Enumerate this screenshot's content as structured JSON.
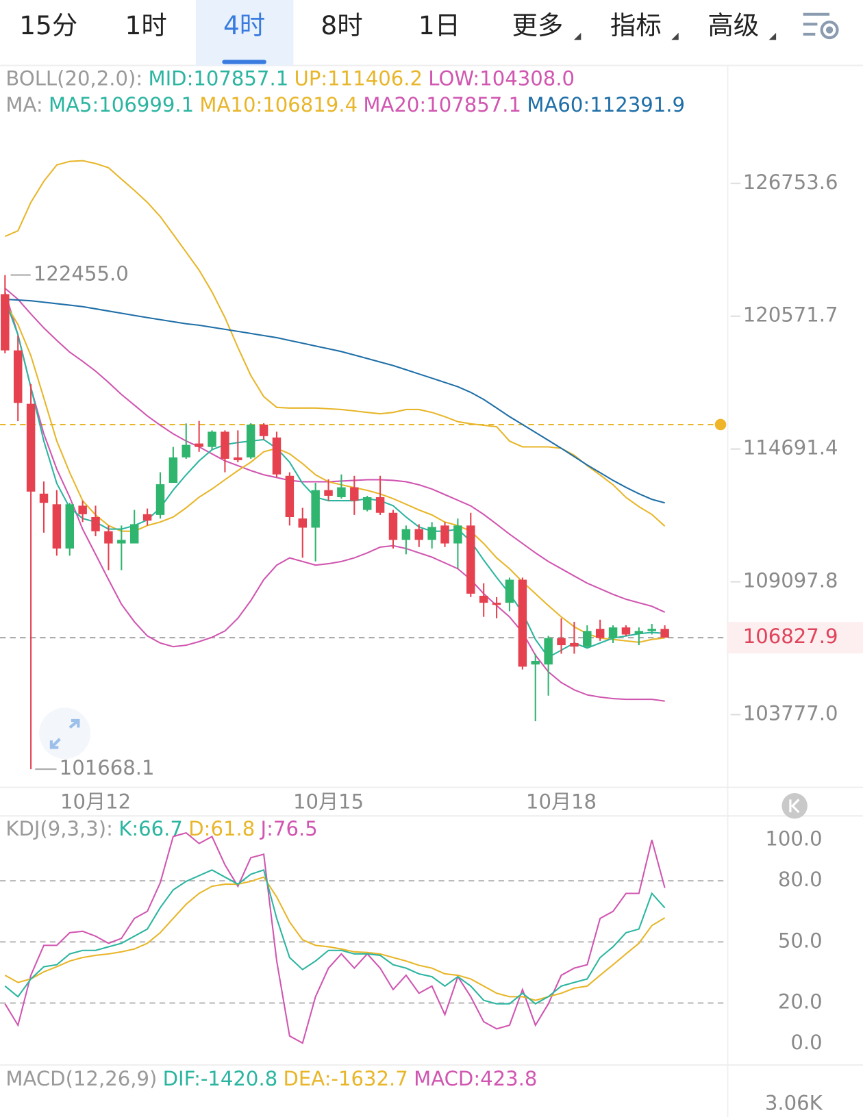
{
  "tabs": [
    "15分",
    "1时",
    "4时",
    "8时",
    "1日",
    "更多",
    "指标",
    "高级"
  ],
  "active_tab": 2,
  "chart_data": [
    {
      "type": "candlestick",
      "log": true,
      "ylim": [
        101000,
        132400
      ],
      "yticks": [
        126753.6,
        120571.7,
        114691.4,
        109097.8,
        {
          "value": 103777,
          "label": "103777.0"
        }
      ],
      "categories": [
        null,
        null,
        null,
        null,
        null,
        null,
        null,
        "10月12",
        null,
        null,
        null,
        null,
        null,
        null,
        null,
        null,
        null,
        null,
        null,
        null,
        null,
        null,
        null,
        null,
        null,
        "10月15",
        null,
        null,
        null,
        null,
        null,
        null,
        null,
        null,
        null,
        null,
        null,
        null,
        null,
        null,
        null,
        null,
        null,
        "10月18",
        null,
        null,
        null,
        null,
        null,
        null,
        null,
        null
      ],
      "up_color": "#2fb56e",
      "down_color": "#e5414f",
      "open": [
        121577,
        119030,
        116660,
        112780,
        112330,
        110475,
        112270,
        111790,
        111195,
        110685,
        110685,
        111910,
        111880,
        113240,
        114330,
        114930,
        114780,
        115440,
        114330,
        114330,
        115750,
        115190,
        113540,
        111730,
        111345,
        112930,
        112630,
        113050,
        112090,
        112630,
        111970,
        110835,
        111285,
        110835,
        111435,
        110685,
        111435,
        108526,
        108240,
        108240,
        109184,
        105754,
        105754,
        106812,
        106612,
        106469,
        107183,
        106812,
        107240,
        106983,
        107098,
        107183
      ],
      "high": [
        122455,
        119700,
        117530,
        113300,
        112930,
        112390,
        112480,
        112270,
        111435,
        111435,
        112090,
        112150,
        113690,
        114780,
        115800,
        115910,
        115500,
        115500,
        115500,
        115810,
        115810,
        115440,
        113690,
        112180,
        113240,
        113390,
        113600,
        113540,
        112690,
        113540,
        112090,
        111435,
        111490,
        111580,
        111580,
        111730,
        111970,
        109040,
        108470,
        109270,
        109270,
        106183,
        106898,
        107610,
        107468,
        107325,
        107554,
        107325,
        107325,
        107240,
        107382,
        107325
      ],
      "low": [
        118900,
        115900,
        101668.1,
        111135,
        110176,
        110176,
        111580,
        110985,
        109580,
        109580,
        110685,
        111435,
        111730,
        113240,
        114270,
        114570,
        114660,
        113690,
        114120,
        114270,
        115090,
        113480,
        111435,
        110090,
        109940,
        112480,
        112570,
        111880,
        112030,
        111880,
        110475,
        110235,
        110535,
        110475,
        110535,
        109640,
        108470,
        107668,
        107610,
        107897,
        105554,
        103520,
        104520,
        106183,
        106183,
        106412,
        106697,
        106612,
        106898,
        106526,
        106955,
        106840
      ],
      "close": [
        119030,
        116700,
        112867,
        112390,
        110475,
        112330,
        111910,
        111195,
        110685,
        110835,
        111490,
        111640,
        113180,
        114330,
        114870,
        114780,
        115440,
        114270,
        114210,
        115750,
        115250,
        113600,
        111790,
        111345,
        112930,
        112690,
        113050,
        112480,
        112630,
        111970,
        110835,
        111285,
        110835,
        111375,
        110685,
        111435,
        108612,
        108240,
        108155,
        109184,
        105668,
        105897,
        106812,
        106526,
        106469,
        107098,
        106812,
        107240,
        106955,
        107098,
        107183,
        106827.9
      ],
      "overlays": [
        {
          "color": "#e8b62a",
          "values": [
            124249,
            124516,
            125852,
            126856,
            127638,
            127808,
            127842,
            127706,
            127502,
            126958,
            126420,
            125852,
            125184,
            124349,
            123514,
            122679,
            121677,
            120509,
            119159,
            117911,
            116973,
            116503,
            116472,
            116472,
            116472,
            116441,
            116410,
            116347,
            116284,
            116222,
            116284,
            116410,
            116410,
            116284,
            116096,
            115878,
            115784,
            115721,
            115659,
            115034,
            114785,
            114785,
            114785,
            114723,
            114422,
            113973,
            113576,
            113157,
            112619,
            112230,
            111901,
            111406.2
          ]
        },
        {
          "color": "#d056b0",
          "values": [
            121677,
            119727,
            117380,
            115348,
            113824,
            112629,
            111284,
            110234,
            109188,
            108183,
            107468,
            106898,
            106612,
            106469,
            106526,
            106669,
            106841,
            107098,
            107611,
            108326,
            109188,
            109786,
            110085,
            109935,
            109786,
            109846,
            109935,
            110085,
            110294,
            110533,
            110593,
            110474,
            110294,
            110115,
            109876,
            109636,
            109188,
            108612,
            108126,
            107668,
            107040,
            106122,
            105464,
            105035,
            104749,
            104549,
            104463,
            104406,
            104378,
            104378,
            104378,
            104308.0
          ]
        },
        {
          "color": "#d056b0",
          "values": [
            121844,
            121342,
            120674,
            120040,
            119480,
            118948,
            118541,
            118103,
            117602,
            117070,
            116600,
            116131,
            115724,
            115348,
            115035,
            114785,
            114482,
            114183,
            113974,
            113764,
            113585,
            113465,
            113345,
            113286,
            113286,
            113286,
            113315,
            113345,
            113375,
            113375,
            113345,
            113286,
            113157,
            112978,
            112739,
            112500,
            112260,
            111901,
            111490,
            111072,
            110683,
            110294,
            109935,
            109636,
            109337,
            109041,
            108812,
            108584,
            108383,
            108240,
            108097,
            107857.1
          ]
        },
        {
          "color": "#1e6ea7",
          "values": [
            121342,
            121309,
            121275,
            121208,
            121141,
            121074,
            121007,
            120907,
            120807,
            120707,
            120605,
            120509,
            120415,
            120321,
            120228,
            120165,
            120071,
            119978,
            119884,
            119790,
            119696,
            119602,
            119477,
            119352,
            119227,
            119104,
            118978,
            118823,
            118666,
            118510,
            118353,
            118165,
            117978,
            117790,
            117602,
            117414,
            117164,
            116851,
            116475,
            116100,
            115755,
            115411,
            115067,
            114723,
            114362,
            114003,
            113674,
            113345,
            113046,
            112777,
            112538,
            112391.9
          ]
        },
        {
          "color": "#e8b62a",
          "values": [
            121175,
            120196,
            118792,
            116913,
            115035,
            113674,
            112480,
            111880,
            111435,
            111195,
            111195,
            111435,
            111580,
            111790,
            112180,
            112629,
            112978,
            113375,
            113764,
            114123,
            114571,
            114723,
            114482,
            114063,
            113585,
            113286,
            113157,
            113038,
            112919,
            112769,
            112570,
            112330,
            112090,
            111880,
            111580,
            111435,
            111195,
            110683,
            110085,
            109636,
            109098,
            108612,
            108126,
            107668,
            107268,
            106984,
            106812,
            106755,
            106698,
            106641,
            106755,
            106819.4
          ]
        },
        {
          "color": "#2bb5a0",
          "values": [
            121342,
            119727,
            117383,
            115035,
            113216,
            112180,
            111730,
            111580,
            111285,
            111285,
            111435,
            111670,
            112180,
            112930,
            113585,
            114183,
            114661,
            114879,
            114973,
            115035,
            115097,
            114723,
            114123,
            113216,
            112629,
            112480,
            112480,
            112480,
            112570,
            112480,
            112270,
            111790,
            111375,
            111195,
            111195,
            111285,
            110774,
            109995,
            109277,
            108612,
            107840,
            106755,
            106040,
            106326,
            106612,
            106412,
            106612,
            106812,
            106898,
            106984,
            107041,
            106999.1
          ]
        }
      ],
      "legend": [
        [
          {
            "text": "BOLL(20,2.0):",
            "color": "#9a9a9a"
          },
          {
            "text": "MID:107857.1",
            "color": "#2bb5a0"
          },
          {
            "text": "UP:111406.2",
            "color": "#e8b62a"
          },
          {
            "text": "LOW:104308.0",
            "color": "#d056b0"
          }
        ],
        [
          {
            "text": "MA:",
            "color": "#9a9a9a"
          },
          {
            "text": "MA5:106999.1",
            "color": "#2bb5a0"
          },
          {
            "text": "MA10:106819.4",
            "color": "#e8b62a"
          },
          {
            "text": "MA20:107857.1",
            "color": "#d056b0"
          },
          {
            "text": "MA60:112391.9",
            "color": "#1e6ea7"
          }
        ]
      ],
      "last_price": 106827.9,
      "alert_price": 115750,
      "high_label": "122455.0",
      "low_label": "101668.1"
    },
    {
      "type": "line",
      "ylim": [
        -10.1,
        111.5
      ],
      "yticks": [
        {
          "value": 100,
          "label": "100.0"
        },
        {
          "value": 80,
          "label": "80.0"
        },
        {
          "value": 50,
          "label": "50.0"
        },
        {
          "value": 20,
          "label": "20.0"
        },
        {
          "value": 0,
          "label": "0.0"
        }
      ],
      "levels": [
        80,
        50,
        20
      ],
      "legend": [
        {
          "text": "KDJ(9,3,3):",
          "color": "#9a9a9a"
        },
        {
          "text": "K:66.7",
          "color": "#2bb5a0"
        },
        {
          "text": "D:61.8",
          "color": "#e8b62a"
        },
        {
          "text": "J:76.5",
          "color": "#d056b0"
        }
      ],
      "series": [
        {
          "color": "#d056b0",
          "values": [
            19.6,
            9.1,
            33.6,
            48.3,
            48.3,
            54.5,
            55.2,
            52.8,
            49.3,
            51.7,
            61.5,
            65.0,
            79.0,
            101.7,
            103.5,
            98.3,
            101.7,
            87.8,
            77.3,
            91.3,
            93.0,
            40.6,
            3.8,
            0.3,
            23.1,
            37.1,
            44.1,
            37.1,
            44.1,
            37.1,
            26.6,
            33.6,
            24.8,
            28.3,
            14.3,
            32.9,
            23.1,
            10.8,
            7.3,
            9.1,
            26.6,
            9.1,
            19.6,
            33.6,
            37.1,
            38.8,
            61.5,
            65.0,
            73.8,
            73.8,
            100.0,
            76.5
          ]
        },
        {
          "color": "#e8b62a",
          "values": [
            33.6,
            30.1,
            31.8,
            35.3,
            37.8,
            40.6,
            42.3,
            43.4,
            44.1,
            45.1,
            46.5,
            49.3,
            54.5,
            61.5,
            68.5,
            73.8,
            77.3,
            78.3,
            78.3,
            79.7,
            81.8,
            72.0,
            59.8,
            51.0,
            48.3,
            47.6,
            46.5,
            45.1,
            44.8,
            44.1,
            42.3,
            40.6,
            38.5,
            37.1,
            34.3,
            33.6,
            31.8,
            28.3,
            24.8,
            23.1,
            23.1,
            21.3,
            23.1,
            24.8,
            27.3,
            28.3,
            33.6,
            38.8,
            44.1,
            49.3,
            58.0,
            61.8
          ]
        },
        {
          "color": "#2bb5a0",
          "values": [
            28.3,
            23.1,
            31.8,
            37.8,
            38.8,
            44.1,
            45.8,
            45.8,
            47.6,
            49.3,
            52.8,
            56.3,
            66.8,
            75.5,
            79.7,
            82.5,
            85.3,
            81.8,
            78.3,
            83.2,
            85.3,
            61.5,
            42.3,
            36.4,
            40.6,
            45.8,
            45.8,
            44.1,
            44.1,
            43.4,
            38.8,
            37.1,
            34.3,
            32.9,
            28.3,
            32.9,
            28.3,
            21.3,
            19.6,
            19.6,
            24.8,
            19.6,
            23.1,
            28.3,
            30.1,
            31.8,
            42.3,
            47.6,
            54.5,
            56.3,
            73.8,
            66.7
          ]
        }
      ]
    },
    {
      "type": "macd",
      "legend": [
        {
          "text": "MACD(12,26,9)",
          "color": "#9a9a9a"
        },
        {
          "text": "DIF:-1420.8",
          "color": "#2bb5a0"
        },
        {
          "text": "DEA:-1632.7",
          "color": "#e8b62a"
        },
        {
          "text": "MACD:423.8",
          "color": "#d056b0"
        }
      ],
      "top_tick": "3.06K"
    }
  ]
}
